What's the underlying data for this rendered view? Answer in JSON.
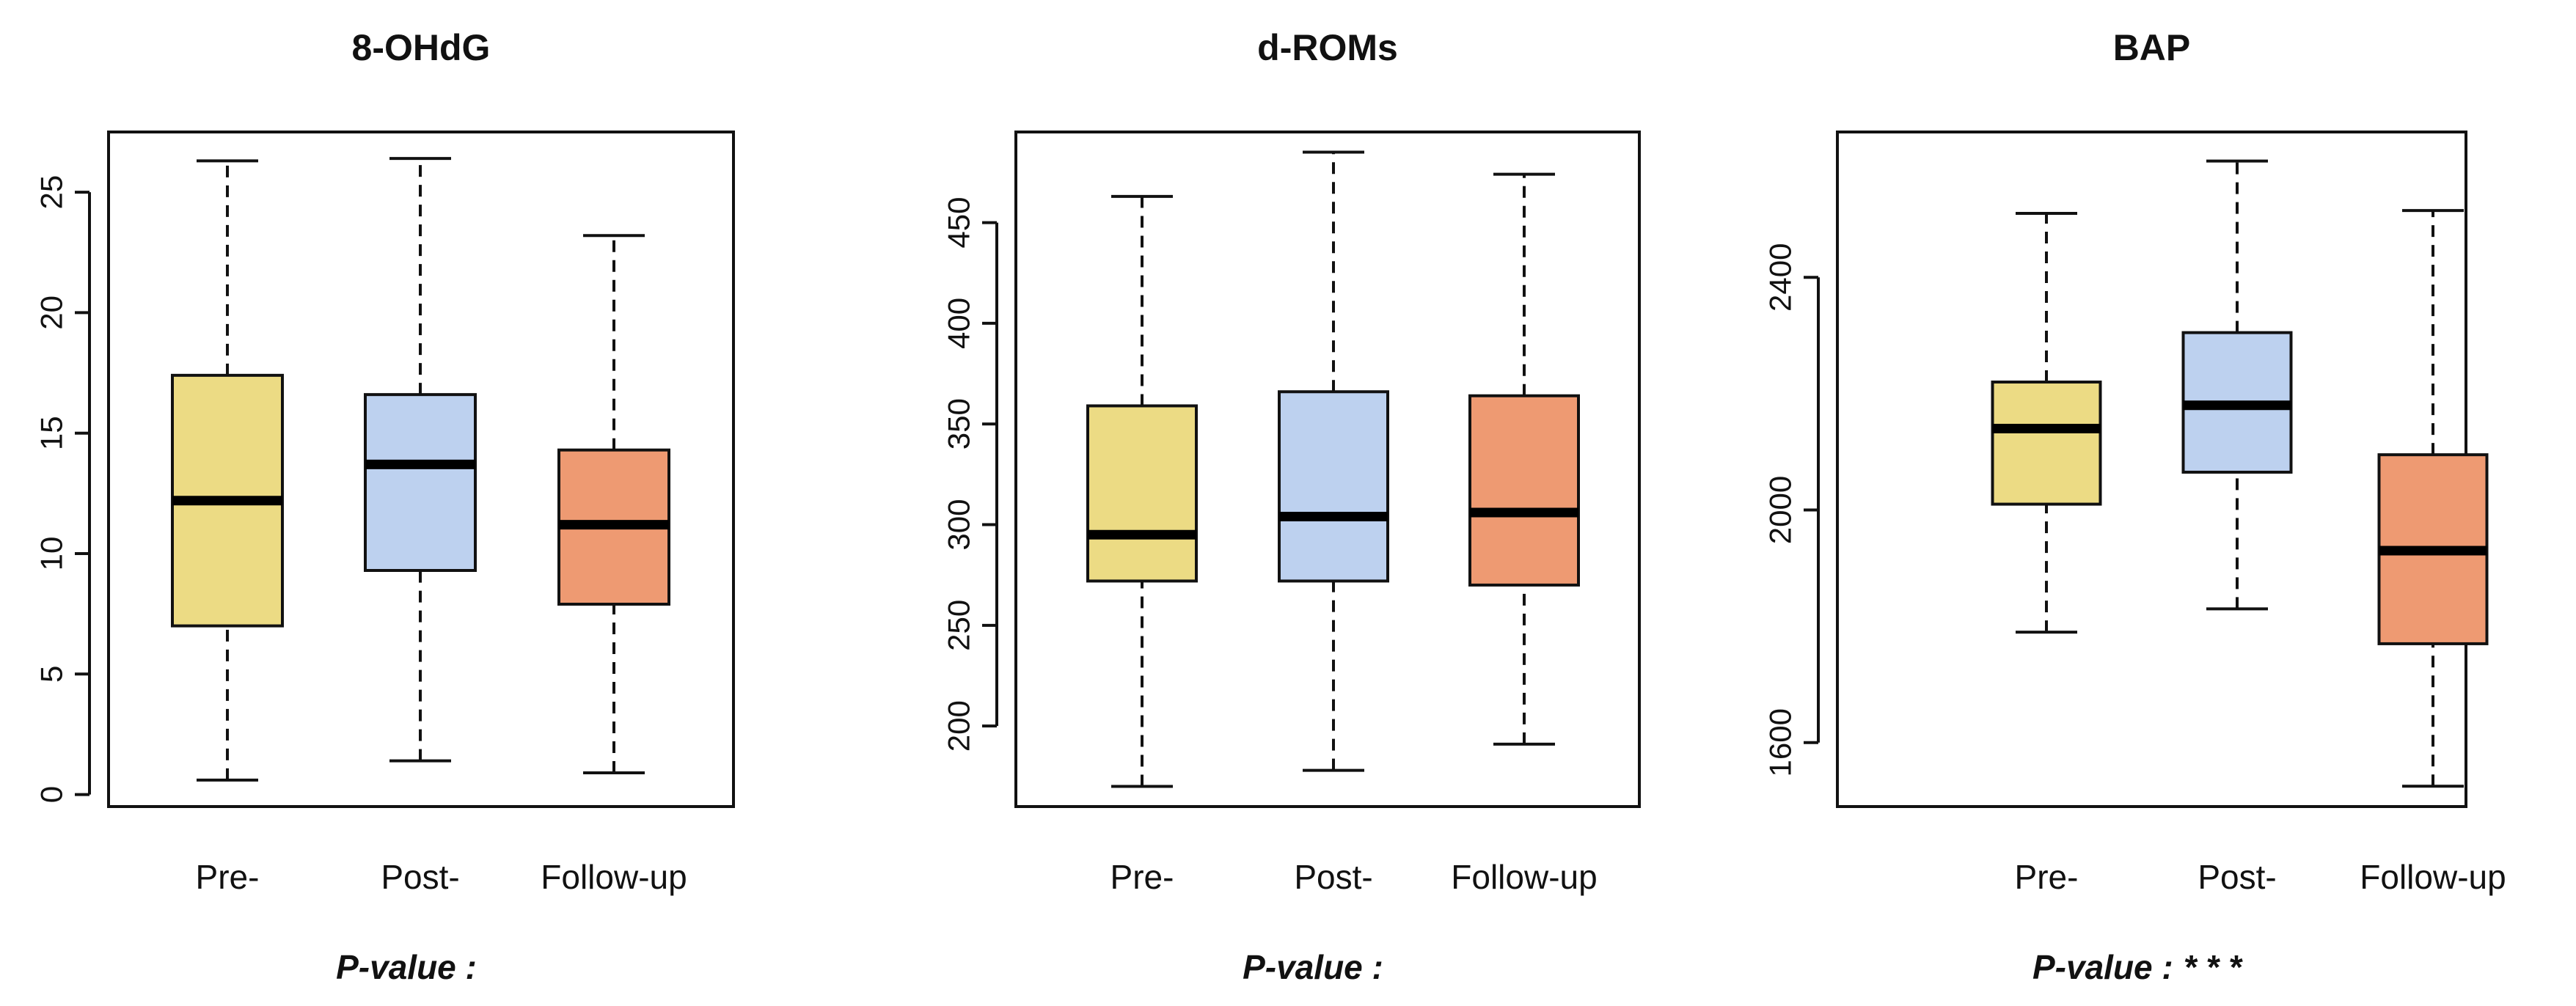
{
  "colors": {
    "pre": "#ecdb84",
    "post": "#bdd1ef",
    "followup": "#ee9a72"
  },
  "chart_data": [
    {
      "type": "boxplot",
      "title": "8-OHdG",
      "categories": [
        "Pre-",
        "Post-",
        "Follow-up"
      ],
      "boxes": [
        {
          "min": 0.6,
          "q1": 7.0,
          "median": 12.2,
          "q3": 17.4,
          "max": 26.3
        },
        {
          "min": 1.4,
          "q1": 9.3,
          "median": 13.7,
          "q3": 16.6,
          "max": 26.4
        },
        {
          "min": 0.9,
          "q1": 7.9,
          "median": 11.2,
          "q3": 14.3,
          "max": 23.2
        }
      ],
      "yticks": [
        0,
        5,
        10,
        15,
        20,
        25
      ],
      "ylim": [
        -0.5,
        27.5
      ],
      "pvalue_label": "P-value :",
      "significance": ""
    },
    {
      "type": "boxplot",
      "title": "d-ROMs",
      "categories": [
        "Pre-",
        "Post-",
        "Follow-up"
      ],
      "boxes": [
        {
          "min": 170,
          "q1": 272,
          "median": 295,
          "q3": 359,
          "max": 463
        },
        {
          "min": 178,
          "q1": 272,
          "median": 304,
          "q3": 366,
          "max": 485
        },
        {
          "min": 191,
          "q1": 270,
          "median": 306,
          "q3": 364,
          "max": 474
        }
      ],
      "yticks": [
        200,
        250,
        300,
        350,
        400,
        450
      ],
      "ylim": [
        160,
        495
      ],
      "pvalue_label": "P-value :",
      "significance": ""
    },
    {
      "type": "boxplot",
      "title": "BAP",
      "categories": [
        "Pre-",
        "Post-",
        "Follow-up"
      ],
      "boxes": [
        {
          "min": 1790,
          "q1": 2010,
          "median": 2140,
          "q3": 2220,
          "max": 2510
        },
        {
          "min": 1830,
          "q1": 2065,
          "median": 2180,
          "q3": 2305,
          "max": 2600
        },
        {
          "min": 1525,
          "q1": 1770,
          "median": 1930,
          "q3": 2095,
          "max": 2515
        }
      ],
      "yticks": [
        1600,
        2000,
        2400
      ],
      "ylim": [
        1490,
        2650
      ],
      "pvalue_label": "P-value :",
      "significance": "* * *"
    }
  ]
}
